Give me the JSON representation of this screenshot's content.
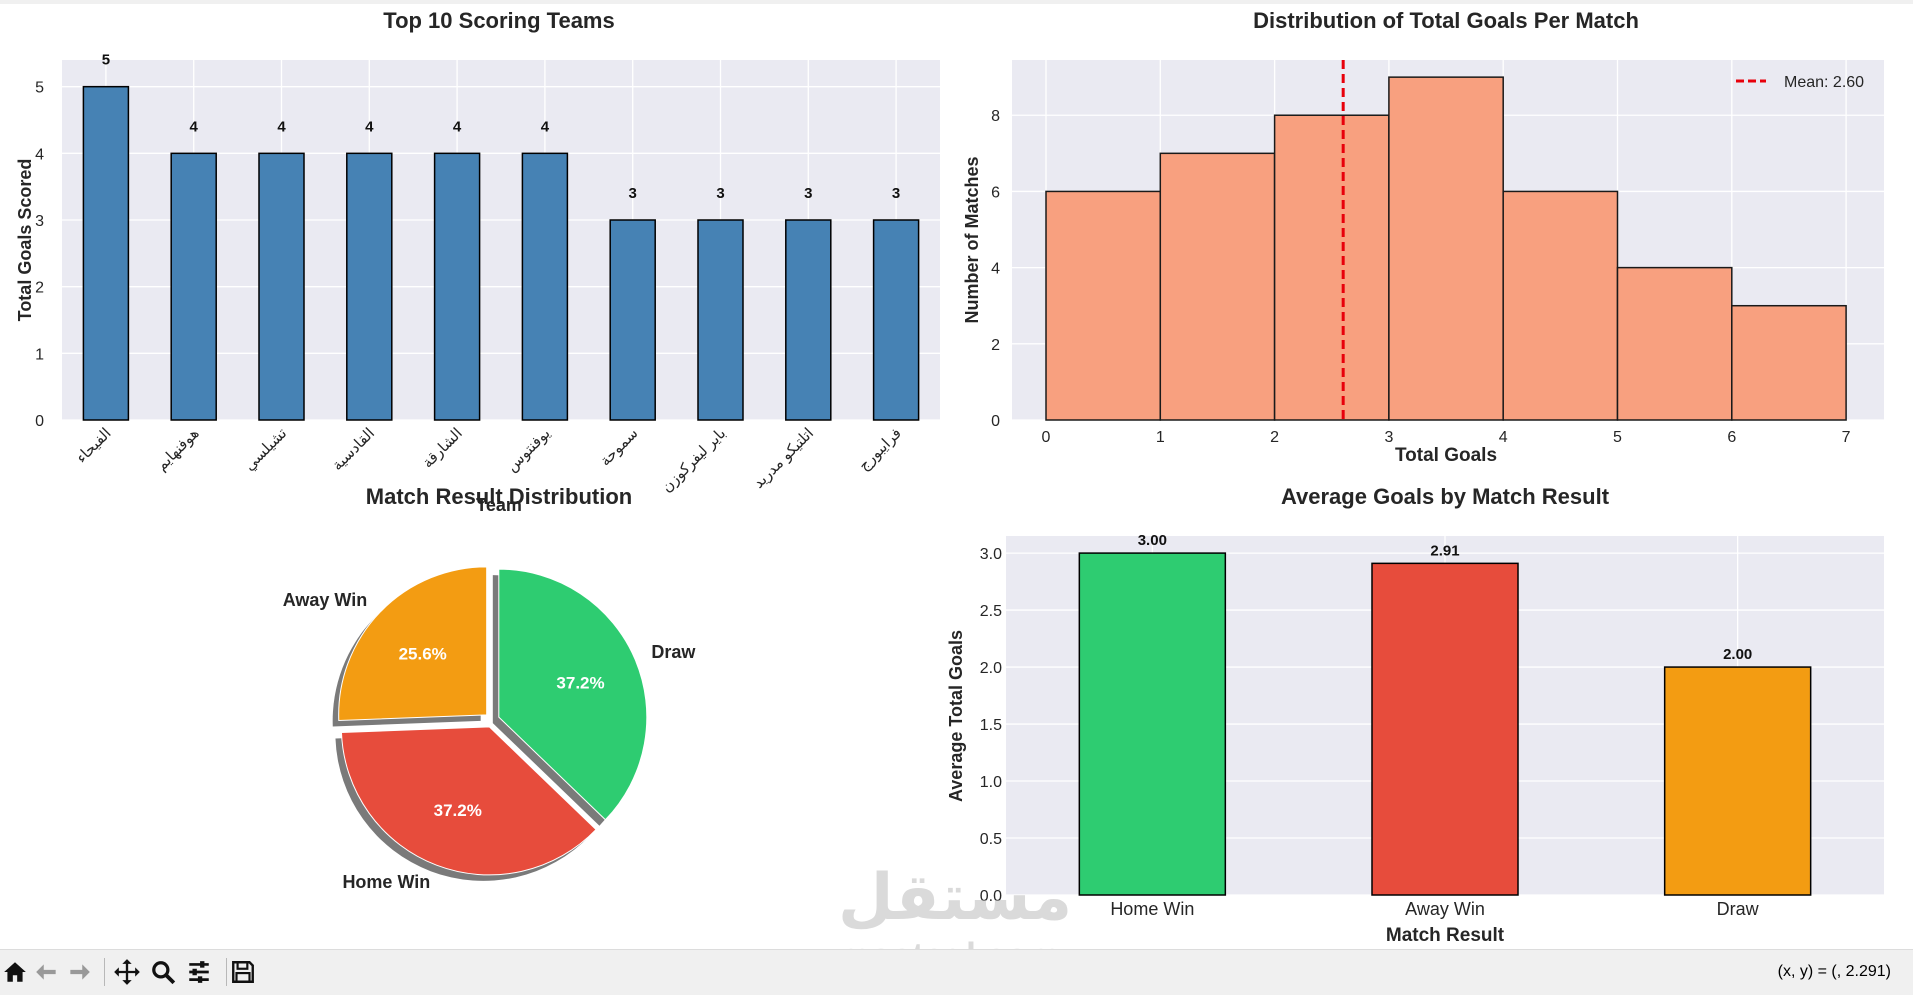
{
  "watermark": {
    "arabic": "مستقل",
    "latin": "mostaql.com"
  },
  "toolbar": {
    "buttons": [
      {
        "name": "home-icon",
        "glyph": "⌂"
      },
      {
        "name": "back-icon",
        "glyph": "←"
      },
      {
        "name": "forward-icon",
        "glyph": "→"
      },
      {
        "name": "pan-icon",
        "glyph": "✥"
      },
      {
        "name": "zoom-icon",
        "glyph": "🔍"
      },
      {
        "name": "configure-subplots-icon",
        "glyph": "☰"
      },
      {
        "name": "save-icon",
        "glyph": "💾"
      }
    ],
    "coords": "(x, y) = (, 2.291)"
  },
  "chart_data": [
    {
      "type": "bar",
      "title": "Top 10 Scoring Teams",
      "xlabel": "Team",
      "ylabel": "Total Goals Scored",
      "categories": [
        "الفيحاء",
        "هوفنهايم",
        "تشيلسي",
        "القادسية",
        "الشارقة",
        "يوفنتوس",
        "سموحة",
        "باير ليفركوزن",
        "اتلتيكو مدريد",
        "فرايبورج"
      ],
      "values": [
        5,
        4,
        4,
        4,
        4,
        4,
        3,
        3,
        3,
        3
      ],
      "data_labels": [
        "5",
        "4",
        "4",
        "4",
        "4",
        "4",
        "3",
        "3",
        "3",
        "3"
      ],
      "ylim": [
        0,
        5.4
      ],
      "yticks": [
        "0",
        "1",
        "2",
        "3",
        "4",
        "5"
      ],
      "bar_color": "#4682b4",
      "grid": true
    },
    {
      "type": "histogram",
      "title": "Distribution of Total Goals Per Match",
      "xlabel": "Total Goals",
      "ylabel": "Number of Matches",
      "bins": [
        0,
        1,
        2,
        3,
        4,
        5,
        6,
        7
      ],
      "counts": [
        6,
        7,
        8,
        9,
        6,
        4,
        3
      ],
      "xticks": [
        "0",
        "1",
        "2",
        "3",
        "4",
        "5",
        "6",
        "7"
      ],
      "yticks": [
        "0",
        "2",
        "4",
        "6",
        "8"
      ],
      "ylim": [
        0,
        9.45
      ],
      "mean": 2.6,
      "legend": "Mean: 2.60",
      "legend_position": "top-right",
      "bar_color": "#f8a07f",
      "mean_color": "#e8000b",
      "grid": true
    },
    {
      "type": "pie",
      "title": "Match Result Distribution",
      "labels": [
        "Away Win",
        "Home Win",
        "Draw"
      ],
      "values": [
        25.6,
        37.2,
        37.2
      ],
      "pct_labels": [
        "25.6%",
        "37.2%",
        "37.2%"
      ],
      "colors": [
        "#f39c12",
        "#e74c3c",
        "#2ecc71"
      ],
      "explode": [
        0.05,
        0.05,
        0.05
      ],
      "start_angle": 90,
      "shadow": true
    },
    {
      "type": "bar",
      "title": "Average Goals by Match Result",
      "xlabel": "Match Result",
      "ylabel": "Average Total Goals",
      "categories": [
        "Home Win",
        "Away Win",
        "Draw"
      ],
      "values": [
        3.0,
        2.91,
        2.0
      ],
      "data_labels": [
        "3.00",
        "2.91",
        "2.00"
      ],
      "colors": [
        "#2ecc71",
        "#e74c3c",
        "#f39c12"
      ],
      "ylim": [
        0,
        3.15
      ],
      "yticks": [
        "0.0",
        "0.5",
        "1.0",
        "1.5",
        "2.0",
        "2.5",
        "3.0"
      ],
      "grid": true
    }
  ]
}
